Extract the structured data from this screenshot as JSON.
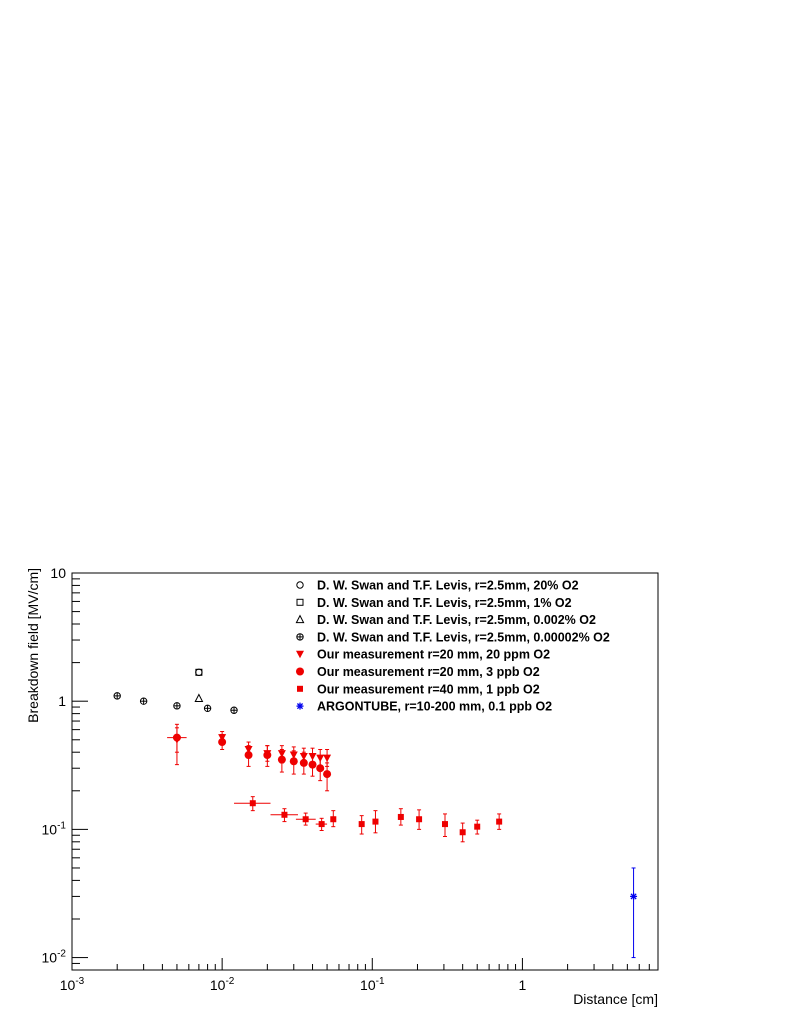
{
  "chart_data": {
    "type": "scatter",
    "title": "",
    "xlabel": "Distance [cm]",
    "ylabel": "Breakdown field [MV/cm]",
    "xscale": "log",
    "yscale": "log",
    "xlim": [
      0.001,
      8
    ],
    "ylim": [
      0.008,
      10
    ],
    "grid": false,
    "legend_position": "top-right",
    "x_ticks": [
      {
        "value": 0.001,
        "base": "10",
        "exp": "-3"
      },
      {
        "value": 0.01,
        "base": "10",
        "exp": "-2"
      },
      {
        "value": 0.1,
        "base": "10",
        "exp": "-1"
      },
      {
        "value": 1,
        "base": "1",
        "exp": ""
      }
    ],
    "y_ticks": [
      {
        "value": 0.01,
        "base": "10",
        "exp": "-2"
      },
      {
        "value": 0.1,
        "base": "10",
        "exp": "-1"
      },
      {
        "value": 1,
        "base": "1",
        "exp": ""
      },
      {
        "value": 10,
        "base": "10",
        "exp": ""
      }
    ],
    "series": [
      {
        "name": "D. W. Swan and T.F. Levis, r=2.5mm, 20% O2",
        "marker": "open-circle",
        "color": "#000000",
        "points": [
          {
            "x": 0.007,
            "y": 1.68
          }
        ]
      },
      {
        "name": "D. W. Swan and T.F. Levis, r=2.5mm, 1% O2",
        "marker": "open-square",
        "color": "#000000",
        "points": [
          {
            "x": 0.007,
            "y": 1.68
          }
        ]
      },
      {
        "name": "D. W. Swan and T.F. Levis, r=2.5mm, 0.002% O2",
        "marker": "open-triangle",
        "color": "#000000",
        "points": [
          {
            "x": 0.007,
            "y": 1.05
          }
        ]
      },
      {
        "name": "D. W. Swan and T.F. Levis, r=2.5mm,  0.00002% O2",
        "marker": "open-cross-circle",
        "color": "#000000",
        "points": [
          {
            "x": 0.002,
            "y": 1.1
          },
          {
            "x": 0.003,
            "y": 1.0
          },
          {
            "x": 0.005,
            "y": 0.92
          },
          {
            "x": 0.008,
            "y": 0.88
          },
          {
            "x": 0.012,
            "y": 0.85
          }
        ]
      },
      {
        "name": "Our measurement r=20 mm, 20 ppm O2",
        "marker": "filled-triangle-down",
        "color": "#ee0000",
        "points": [
          {
            "x": 0.005,
            "y": 0.5,
            "ylo": 0.4,
            "yhi": 0.62
          },
          {
            "x": 0.01,
            "y": 0.52,
            "ylo": 0.46,
            "yhi": 0.58
          },
          {
            "x": 0.015,
            "y": 0.42,
            "ylo": 0.36,
            "yhi": 0.48
          },
          {
            "x": 0.02,
            "y": 0.39,
            "ylo": 0.34,
            "yhi": 0.45
          },
          {
            "x": 0.025,
            "y": 0.39,
            "ylo": 0.33,
            "yhi": 0.45
          },
          {
            "x": 0.03,
            "y": 0.38,
            "ylo": 0.33,
            "yhi": 0.44
          },
          {
            "x": 0.035,
            "y": 0.37,
            "ylo": 0.32,
            "yhi": 0.43
          },
          {
            "x": 0.04,
            "y": 0.37,
            "ylo": 0.32,
            "yhi": 0.43
          },
          {
            "x": 0.045,
            "y": 0.36,
            "ylo": 0.31,
            "yhi": 0.42
          },
          {
            "x": 0.05,
            "y": 0.36,
            "ylo": 0.31,
            "yhi": 0.42
          }
        ]
      },
      {
        "name": "Our measurement r=20 mm, 3 ppb O2",
        "marker": "filled-circle",
        "color": "#ee0000",
        "points": [
          {
            "x": 0.005,
            "y": 0.52,
            "ylo": 0.32,
            "yhi": 0.66,
            "xlo": 0.0043,
            "xhi": 0.0058
          },
          {
            "x": 0.01,
            "y": 0.48,
            "ylo": 0.42,
            "yhi": 0.55
          },
          {
            "x": 0.015,
            "y": 0.38,
            "ylo": 0.31,
            "yhi": 0.45
          },
          {
            "x": 0.02,
            "y": 0.38,
            "ylo": 0.31,
            "yhi": 0.45
          },
          {
            "x": 0.025,
            "y": 0.35,
            "ylo": 0.28,
            "yhi": 0.42
          },
          {
            "x": 0.03,
            "y": 0.34,
            "ylo": 0.27,
            "yhi": 0.41
          },
          {
            "x": 0.035,
            "y": 0.33,
            "ylo": 0.27,
            "yhi": 0.4
          },
          {
            "x": 0.04,
            "y": 0.32,
            "ylo": 0.26,
            "yhi": 0.39
          },
          {
            "x": 0.045,
            "y": 0.3,
            "ylo": 0.24,
            "yhi": 0.37
          },
          {
            "x": 0.05,
            "y": 0.27,
            "ylo": 0.2,
            "yhi": 0.33
          }
        ]
      },
      {
        "name": "Our measurement r=40 mm, 1 ppb O2",
        "marker": "filled-square",
        "color": "#ee0000",
        "points": [
          {
            "x": 0.016,
            "y": 0.16,
            "ylo": 0.14,
            "yhi": 0.18,
            "xlo": 0.012,
            "xhi": 0.021
          },
          {
            "x": 0.026,
            "y": 0.13,
            "ylo": 0.115,
            "yhi": 0.145,
            "xlo": 0.021,
            "xhi": 0.032
          },
          {
            "x": 0.036,
            "y": 0.12,
            "ylo": 0.108,
            "yhi": 0.134,
            "xlo": 0.031,
            "xhi": 0.042
          },
          {
            "x": 0.046,
            "y": 0.11,
            "ylo": 0.098,
            "yhi": 0.122,
            "xlo": 0.042,
            "xhi": 0.05
          },
          {
            "x": 0.055,
            "y": 0.12,
            "ylo": 0.105,
            "yhi": 0.14
          },
          {
            "x": 0.085,
            "y": 0.11,
            "ylo": 0.092,
            "yhi": 0.128
          },
          {
            "x": 0.105,
            "y": 0.115,
            "ylo": 0.094,
            "yhi": 0.14
          },
          {
            "x": 0.155,
            "y": 0.125,
            "ylo": 0.108,
            "yhi": 0.145
          },
          {
            "x": 0.205,
            "y": 0.12,
            "ylo": 0.1,
            "yhi": 0.142
          },
          {
            "x": 0.305,
            "y": 0.11,
            "ylo": 0.088,
            "yhi": 0.132
          },
          {
            "x": 0.4,
            "y": 0.095,
            "ylo": 0.08,
            "yhi": 0.112
          },
          {
            "x": 0.5,
            "y": 0.105,
            "ylo": 0.092,
            "yhi": 0.118
          },
          {
            "x": 0.7,
            "y": 0.115,
            "ylo": 0.1,
            "yhi": 0.132
          }
        ]
      },
      {
        "name": "ARGONTUBE, r=10-200 mm, 0.1 ppb O2",
        "marker": "star",
        "color": "#0000ee",
        "points": [
          {
            "x": 5.5,
            "y": 0.03,
            "ylo": 0.01,
            "yhi": 0.05
          }
        ]
      }
    ]
  }
}
